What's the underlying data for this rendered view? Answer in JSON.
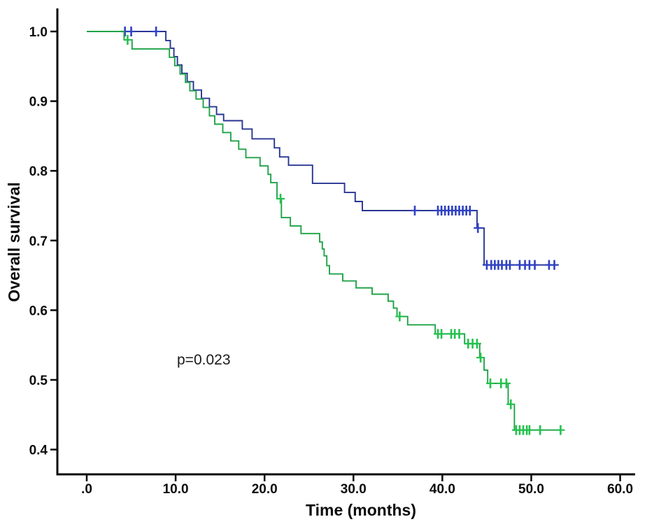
{
  "chart_data": {
    "type": "line",
    "subtype": "kaplan-meier-step",
    "title": "",
    "xlabel": "Time (months)",
    "ylabel": "Overall survival",
    "annotation": {
      "text": "p=0.023",
      "t": 10.2,
      "v": 0.52
    },
    "x_axis": {
      "labels": [
        ".0",
        "10.0",
        "20.0",
        "30.0",
        "40.0",
        "50.0",
        "60.0"
      ],
      "values": [
        0,
        10,
        20,
        30,
        40,
        50,
        60
      ],
      "range": [
        0,
        63
      ]
    },
    "y_axis": {
      "labels": [
        "1.0",
        "0.9",
        "0.8",
        "0.7",
        "0.6",
        "0.5",
        "0.4"
      ],
      "values": [
        1.0,
        0.9,
        0.8,
        0.7,
        0.6,
        0.5,
        0.4
      ],
      "range": [
        0.365,
        1.035
      ]
    },
    "grid": false,
    "legend": "none",
    "colors": {
      "axis": "#0a0a0a",
      "series_blue": "#283593",
      "series_blue_censor": "#2f41c2",
      "series_green": "#1fa348",
      "series_green_censor": "#25c14e"
    },
    "series": [
      {
        "name": "group-blue",
        "color": "#283593",
        "censor_color": "#2f41c2",
        "start": {
          "t": 0,
          "s": 1.0
        },
        "end_t": 53.1,
        "steps": [
          [
            8.9,
            0.987
          ],
          [
            9.4,
            0.976
          ],
          [
            9.8,
            0.964
          ],
          [
            10.2,
            0.952
          ],
          [
            10.7,
            0.94
          ],
          [
            11.3,
            0.928
          ],
          [
            12.0,
            0.916
          ],
          [
            12.9,
            0.904
          ],
          [
            13.8,
            0.892
          ],
          [
            14.6,
            0.881
          ],
          [
            15.4,
            0.872
          ],
          [
            17.5,
            0.86
          ],
          [
            18.6,
            0.846
          ],
          [
            21.1,
            0.833
          ],
          [
            21.7,
            0.82
          ],
          [
            22.7,
            0.808
          ],
          [
            25.4,
            0.782
          ],
          [
            29.0,
            0.769
          ],
          [
            30.2,
            0.756
          ],
          [
            31.0,
            0.743
          ],
          [
            43.9,
            0.718
          ],
          [
            44.7,
            0.665
          ]
        ],
        "censors": [
          [
            4.3,
            1.0
          ],
          [
            5.0,
            1.0
          ],
          [
            7.8,
            1.0
          ],
          [
            36.9,
            0.743
          ],
          [
            39.5,
            0.743
          ],
          [
            39.9,
            0.743
          ],
          [
            40.3,
            0.743
          ],
          [
            40.7,
            0.743
          ],
          [
            41.1,
            0.743
          ],
          [
            41.5,
            0.743
          ],
          [
            41.9,
            0.743
          ],
          [
            42.3,
            0.743
          ],
          [
            42.7,
            0.743
          ],
          [
            43.1,
            0.743
          ],
          [
            44.0,
            0.718
          ],
          [
            45.0,
            0.665
          ],
          [
            45.5,
            0.665
          ],
          [
            45.9,
            0.665
          ],
          [
            46.3,
            0.665
          ],
          [
            46.7,
            0.665
          ],
          [
            47.2,
            0.665
          ],
          [
            47.6,
            0.665
          ],
          [
            48.7,
            0.665
          ],
          [
            49.3,
            0.665
          ],
          [
            49.8,
            0.665
          ],
          [
            50.4,
            0.665
          ],
          [
            52.0,
            0.665
          ],
          [
            52.6,
            0.665
          ]
        ]
      },
      {
        "name": "group-green",
        "color": "#1fa348",
        "censor_color": "#25c14e",
        "start": {
          "t": 0,
          "s": 1.0
        },
        "end_t": 53.6,
        "steps": [
          [
            4.2,
            0.988
          ],
          [
            5.1,
            0.975
          ],
          [
            9.3,
            0.963
          ],
          [
            9.9,
            0.951
          ],
          [
            10.5,
            0.939
          ],
          [
            11.1,
            0.927
          ],
          [
            11.6,
            0.915
          ],
          [
            12.3,
            0.903
          ],
          [
            13.1,
            0.891
          ],
          [
            13.8,
            0.879
          ],
          [
            14.4,
            0.867
          ],
          [
            15.3,
            0.855
          ],
          [
            16.2,
            0.843
          ],
          [
            17.1,
            0.831
          ],
          [
            17.9,
            0.819
          ],
          [
            19.5,
            0.807
          ],
          [
            20.4,
            0.795
          ],
          [
            20.7,
            0.783
          ],
          [
            21.4,
            0.76
          ],
          [
            21.9,
            0.733
          ],
          [
            22.9,
            0.721
          ],
          [
            24.1,
            0.71
          ],
          [
            26.2,
            0.698
          ],
          [
            26.5,
            0.688
          ],
          [
            26.7,
            0.678
          ],
          [
            27.0,
            0.664
          ],
          [
            27.3,
            0.652
          ],
          [
            28.8,
            0.642
          ],
          [
            30.3,
            0.632
          ],
          [
            32.1,
            0.623
          ],
          [
            33.9,
            0.613
          ],
          [
            34.5,
            0.603
          ],
          [
            34.9,
            0.591
          ],
          [
            36.1,
            0.579
          ],
          [
            39.2,
            0.566
          ],
          [
            42.5,
            0.552
          ],
          [
            44.2,
            0.532
          ],
          [
            44.7,
            0.514
          ],
          [
            45.1,
            0.495
          ],
          [
            47.4,
            0.465
          ],
          [
            48.1,
            0.428
          ]
        ],
        "censors": [
          [
            4.6,
            0.988
          ],
          [
            21.8,
            0.76
          ],
          [
            35.2,
            0.591
          ],
          [
            39.5,
            0.566
          ],
          [
            39.9,
            0.566
          ],
          [
            41.0,
            0.566
          ],
          [
            41.4,
            0.566
          ],
          [
            41.9,
            0.566
          ],
          [
            42.9,
            0.552
          ],
          [
            43.4,
            0.552
          ],
          [
            43.9,
            0.552
          ],
          [
            44.3,
            0.532
          ],
          [
            45.4,
            0.495
          ],
          [
            46.6,
            0.495
          ],
          [
            47.2,
            0.495
          ],
          [
            47.7,
            0.465
          ],
          [
            48.3,
            0.428
          ],
          [
            48.7,
            0.428
          ],
          [
            49.1,
            0.428
          ],
          [
            49.5,
            0.428
          ],
          [
            49.8,
            0.428
          ],
          [
            51.0,
            0.428
          ],
          [
            53.3,
            0.428
          ]
        ]
      }
    ]
  }
}
